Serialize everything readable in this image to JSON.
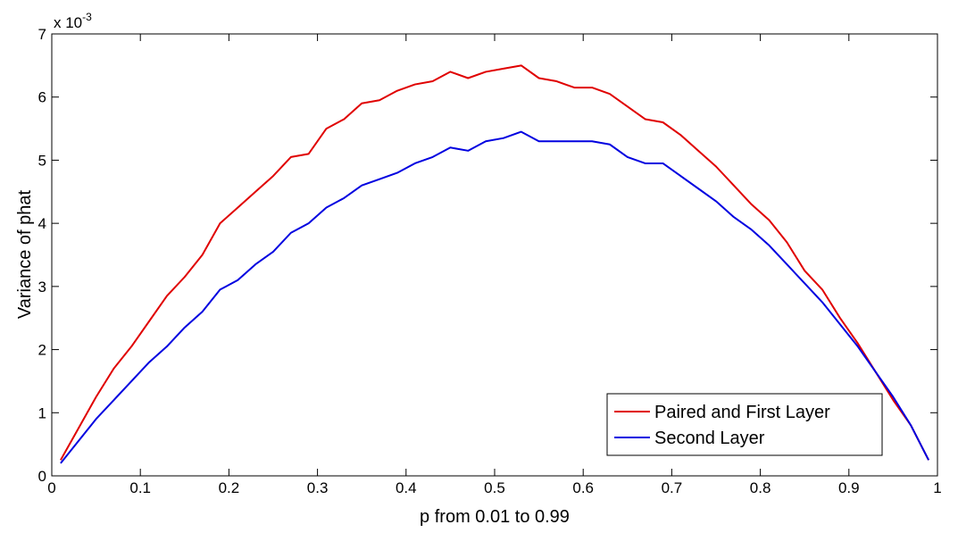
{
  "chart_data": {
    "type": "line",
    "title": "",
    "xlabel": "p from 0.01 to 0.99",
    "ylabel": "Variance of phat",
    "y_exponent_label": "x 10",
    "y_exponent_power": "-3",
    "xlim": [
      0,
      1
    ],
    "ylim": [
      0,
      7
    ],
    "xticks": [
      "0",
      "0.1",
      "0.2",
      "0.3",
      "0.4",
      "0.5",
      "0.6",
      "0.7",
      "0.8",
      "0.9",
      "1"
    ],
    "yticks": [
      "0",
      "1",
      "2",
      "3",
      "4",
      "5",
      "6",
      "7"
    ],
    "grid": false,
    "legend_position": "bottom-right",
    "x": [
      0.01,
      0.03,
      0.05,
      0.07,
      0.09,
      0.11,
      0.13,
      0.15,
      0.17,
      0.19,
      0.21,
      0.23,
      0.25,
      0.27,
      0.29,
      0.31,
      0.33,
      0.35,
      0.37,
      0.39,
      0.41,
      0.43,
      0.45,
      0.47,
      0.49,
      0.51,
      0.53,
      0.55,
      0.57,
      0.59,
      0.61,
      0.63,
      0.65,
      0.67,
      0.69,
      0.71,
      0.73,
      0.75,
      0.77,
      0.79,
      0.81,
      0.83,
      0.85,
      0.87,
      0.89,
      0.91,
      0.93,
      0.95,
      0.97,
      0.99
    ],
    "series": [
      {
        "name": "Paired and First Layer",
        "color": "#e00000",
        "values": [
          0.25,
          0.75,
          1.25,
          1.7,
          2.05,
          2.45,
          2.85,
          3.15,
          3.5,
          4.0,
          4.25,
          4.5,
          4.75,
          5.05,
          5.1,
          5.5,
          5.65,
          5.9,
          5.95,
          6.1,
          6.2,
          6.25,
          6.4,
          6.3,
          6.4,
          6.45,
          6.5,
          6.3,
          6.25,
          6.15,
          6.15,
          6.05,
          5.85,
          5.65,
          5.6,
          5.4,
          5.15,
          4.9,
          4.6,
          4.3,
          4.05,
          3.7,
          3.25,
          2.95,
          2.5,
          2.1,
          1.65,
          1.2,
          0.8,
          0.25
        ]
      },
      {
        "name": "Second Layer",
        "color": "#0000e0",
        "values": [
          0.2,
          0.55,
          0.9,
          1.2,
          1.5,
          1.8,
          2.05,
          2.35,
          2.6,
          2.95,
          3.1,
          3.35,
          3.55,
          3.85,
          4.0,
          4.25,
          4.4,
          4.6,
          4.7,
          4.8,
          4.95,
          5.05,
          5.2,
          5.15,
          5.3,
          5.35,
          5.45,
          5.3,
          5.3,
          5.3,
          5.3,
          5.25,
          5.05,
          4.95,
          4.95,
          4.75,
          4.55,
          4.35,
          4.1,
          3.9,
          3.65,
          3.35,
          3.05,
          2.75,
          2.4,
          2.05,
          1.65,
          1.25,
          0.8,
          0.25
        ]
      }
    ]
  }
}
